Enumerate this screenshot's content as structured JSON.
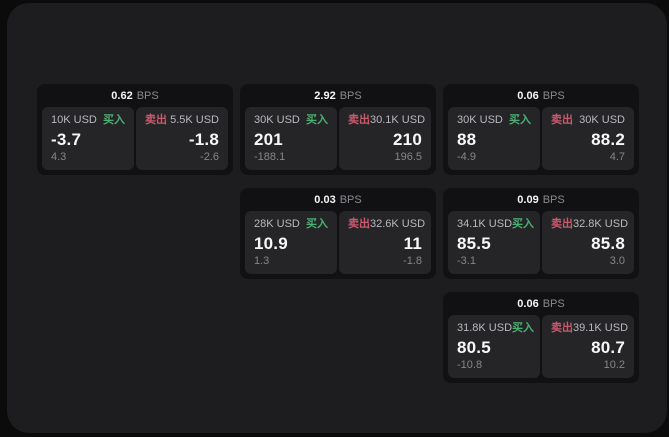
{
  "labels": {
    "bps_unit": "BPS",
    "buy": "买入",
    "sell": "卖出"
  },
  "colors": {
    "background": "#0b0b0c",
    "panel": "#1d1d1f",
    "card": "#111113",
    "subpanel": "#252528",
    "buy_green": "#4caf72",
    "sell_red": "#c9596b",
    "value_white": "#f7f7f8",
    "muted_gray": "#86868a"
  },
  "cards": [
    {
      "bps": "0.62",
      "col": 1,
      "row": 1,
      "buy": {
        "amount": "10K USD",
        "value": "-3.7",
        "delta": "4.3"
      },
      "sell": {
        "amount": "5.5K USD",
        "value": "-1.8",
        "delta": "-2.6"
      }
    },
    {
      "bps": "2.92",
      "col": 2,
      "row": 1,
      "buy": {
        "amount": "30K USD",
        "value": "201",
        "delta": "-188.1"
      },
      "sell": {
        "amount": "30.1K USD",
        "value": "210",
        "delta": "196.5"
      }
    },
    {
      "bps": "0.06",
      "col": 3,
      "row": 1,
      "buy": {
        "amount": "30K USD",
        "value": "88",
        "delta": "-4.9"
      },
      "sell": {
        "amount": "30K USD",
        "value": "88.2",
        "delta": "4.7"
      }
    },
    {
      "bps": "0.03",
      "col": 2,
      "row": 2,
      "buy": {
        "amount": "28K USD",
        "value": "10.9",
        "delta": "1.3"
      },
      "sell": {
        "amount": "32.6K USD",
        "value": "11",
        "delta": "-1.8"
      }
    },
    {
      "bps": "0.09",
      "col": 3,
      "row": 2,
      "buy": {
        "amount": "34.1K USD",
        "value": "85.5",
        "delta": "-3.1"
      },
      "sell": {
        "amount": "32.8K USD",
        "value": "85.8",
        "delta": "3.0"
      }
    },
    {
      "bps": "0.06",
      "col": 3,
      "row": 3,
      "buy": {
        "amount": "31.8K USD",
        "value": "80.5",
        "delta": "-10.8"
      },
      "sell": {
        "amount": "39.1K USD",
        "value": "80.7",
        "delta": "10.2"
      }
    }
  ]
}
